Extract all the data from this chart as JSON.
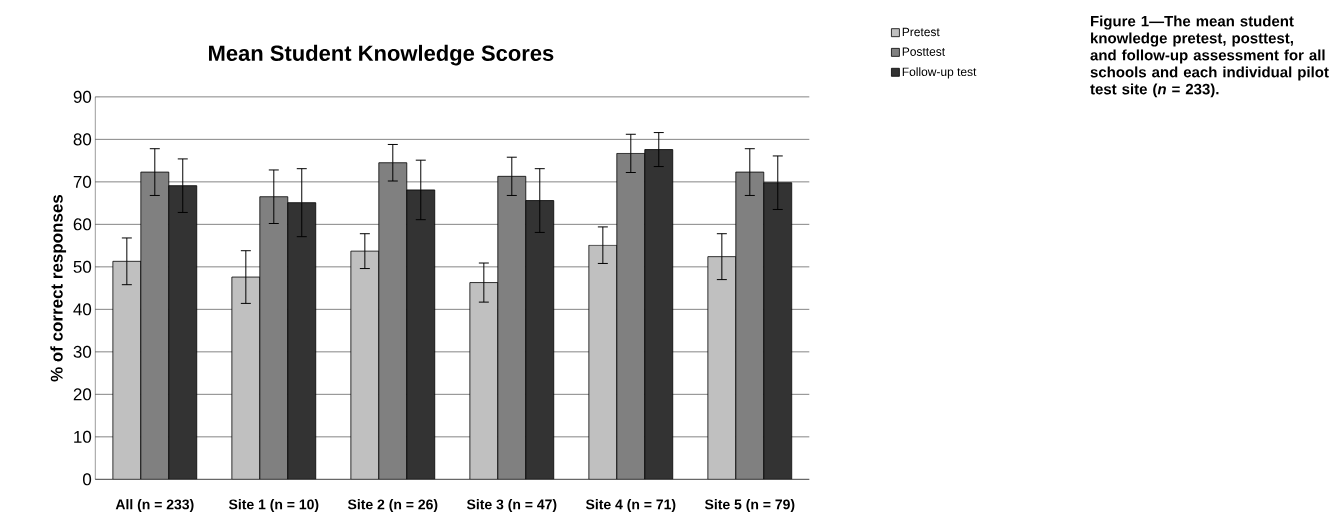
{
  "chart_data": {
    "type": "bar",
    "title": "Mean Student Knowledge Scores",
    "ylabel": "% of correct responses",
    "categories": [
      "All (n = 233)",
      "Site 1 (n = 10)",
      "Site 2 (n = 26)",
      "Site 3 (n = 47)",
      "Site 4 (n = 71)",
      "Site 5 (n = 79)"
    ],
    "series": [
      {
        "name": "Pretest",
        "color": "#c0c0c0",
        "values": [
          51.3,
          47.6,
          53.7,
          46.3,
          55.1,
          52.4
        ],
        "errors": [
          5.5,
          6.2,
          4.1,
          4.6,
          4.3,
          5.4
        ]
      },
      {
        "name": "Posttest",
        "color": "#808080",
        "values": [
          72.3,
          66.5,
          74.5,
          71.3,
          76.7,
          72.3
        ],
        "errors": [
          5.5,
          6.3,
          4.3,
          4.5,
          4.5,
          5.5
        ]
      },
      {
        "name": "Follow-up test",
        "color": "#333333",
        "values": [
          69.1,
          65.1,
          68.1,
          65.6,
          77.6,
          69.8
        ],
        "errors": [
          6.3,
          8.0,
          7.0,
          7.5,
          4.0,
          6.3
        ]
      }
    ],
    "ylim": [
      0,
      90
    ],
    "yticks": [
      0,
      10,
      20,
      30,
      40,
      50,
      60,
      70,
      80,
      90
    ],
    "grid": "y",
    "legend": "top right",
    "annotations": [
      "Figure 1—The mean student knowledge pretest, posttest, and follow-up assessment for all schools and each individual pilot test site (*n* = 233)."
    ]
  }
}
